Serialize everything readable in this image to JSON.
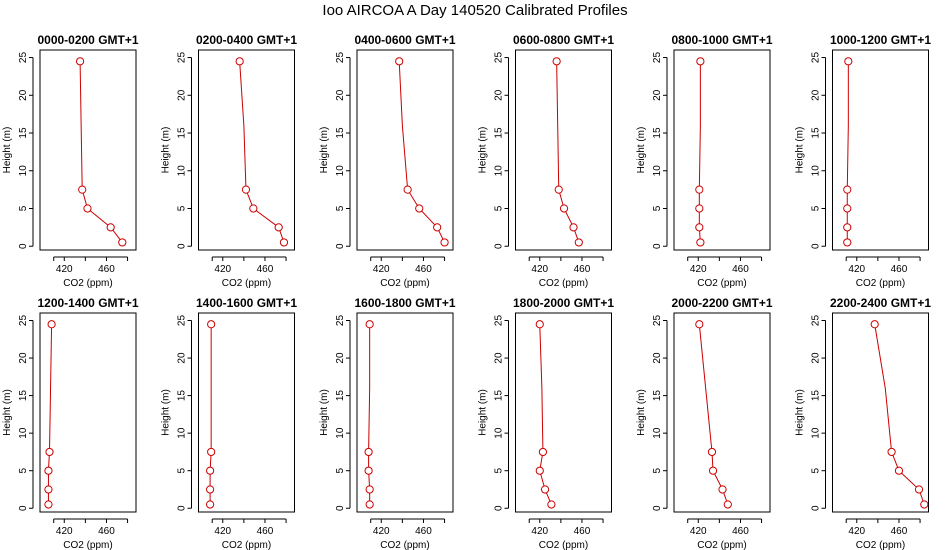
{
  "title": "Ioo AIRCOA A  Day 140520  Calibrated Profiles",
  "chart_data": {
    "type": "line",
    "xlabel": "CO2 (ppm)",
    "ylabel": "Height (m)",
    "xlim": [
      397,
      488
    ],
    "ylim": [
      -0.5,
      26
    ],
    "xticks": [
      420,
      460
    ],
    "yticks": [
      0,
      5,
      10,
      15,
      20,
      25
    ],
    "heights": [
      0.5,
      2.5,
      5,
      7.5,
      16,
      24.5
    ],
    "line_color": "#cc0000",
    "panels": [
      {
        "label": "0000-0200 GMT+1",
        "co2": [
          475,
          464,
          442,
          437,
          436,
          435
        ]
      },
      {
        "label": "0200-0400 GMT+1",
        "co2": [
          478,
          473,
          449,
          442,
          440,
          436
        ]
      },
      {
        "label": "0400-0600 GMT+1",
        "co2": [
          480,
          473,
          456,
          445,
          440,
          437
        ]
      },
      {
        "label": "0600-0800 GMT+1",
        "co2": [
          457,
          452,
          443,
          438,
          437,
          436
        ]
      },
      {
        "label": "0800-1000 GMT+1",
        "co2": [
          422,
          421,
          421,
          421,
          422,
          422
        ]
      },
      {
        "label": "1000-1200 GMT+1",
        "co2": [
          411,
          411,
          411,
          411,
          412,
          412
        ]
      },
      {
        "label": "1200-1400 GMT+1",
        "co2": [
          405,
          405,
          405,
          406,
          407,
          408
        ]
      },
      {
        "label": "1400-1600 GMT+1",
        "co2": [
          408,
          408,
          408,
          409,
          409,
          409
        ]
      },
      {
        "label": "1600-1800 GMT+1",
        "co2": [
          409,
          409,
          408,
          408,
          409,
          409
        ]
      },
      {
        "label": "1800-2000 GMT+1",
        "co2": [
          431,
          425,
          420,
          423,
          422,
          420
        ]
      },
      {
        "label": "2000-2200 GMT+1",
        "co2": [
          448,
          443,
          434,
          433,
          427,
          421
        ]
      },
      {
        "label": "2200-2400 GMT+1",
        "co2": [
          484,
          479,
          460,
          453,
          447,
          437
        ]
      }
    ]
  }
}
